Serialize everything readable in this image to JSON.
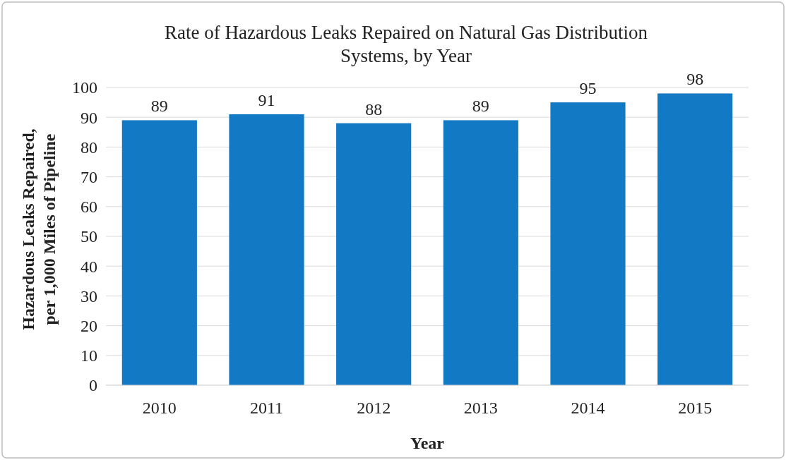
{
  "chart_data": {
    "type": "bar",
    "title": "Rate of Hazardous Leaks Repaired on Natural Gas Distribution Systems, by Year",
    "xlabel": "Year",
    "ylabel": "Hazardous Leaks Repaired, per 1,000 Miles of Pipeline",
    "categories": [
      "2010",
      "2011",
      "2012",
      "2013",
      "2014",
      "2015"
    ],
    "values": [
      89,
      91,
      88,
      89,
      95,
      98
    ],
    "color": "#1279c4",
    "ylim": [
      0,
      100
    ],
    "yticks": [
      0,
      10,
      20,
      30,
      40,
      50,
      60,
      70,
      80,
      90,
      100
    ],
    "grid": "y",
    "data_labels": true
  }
}
